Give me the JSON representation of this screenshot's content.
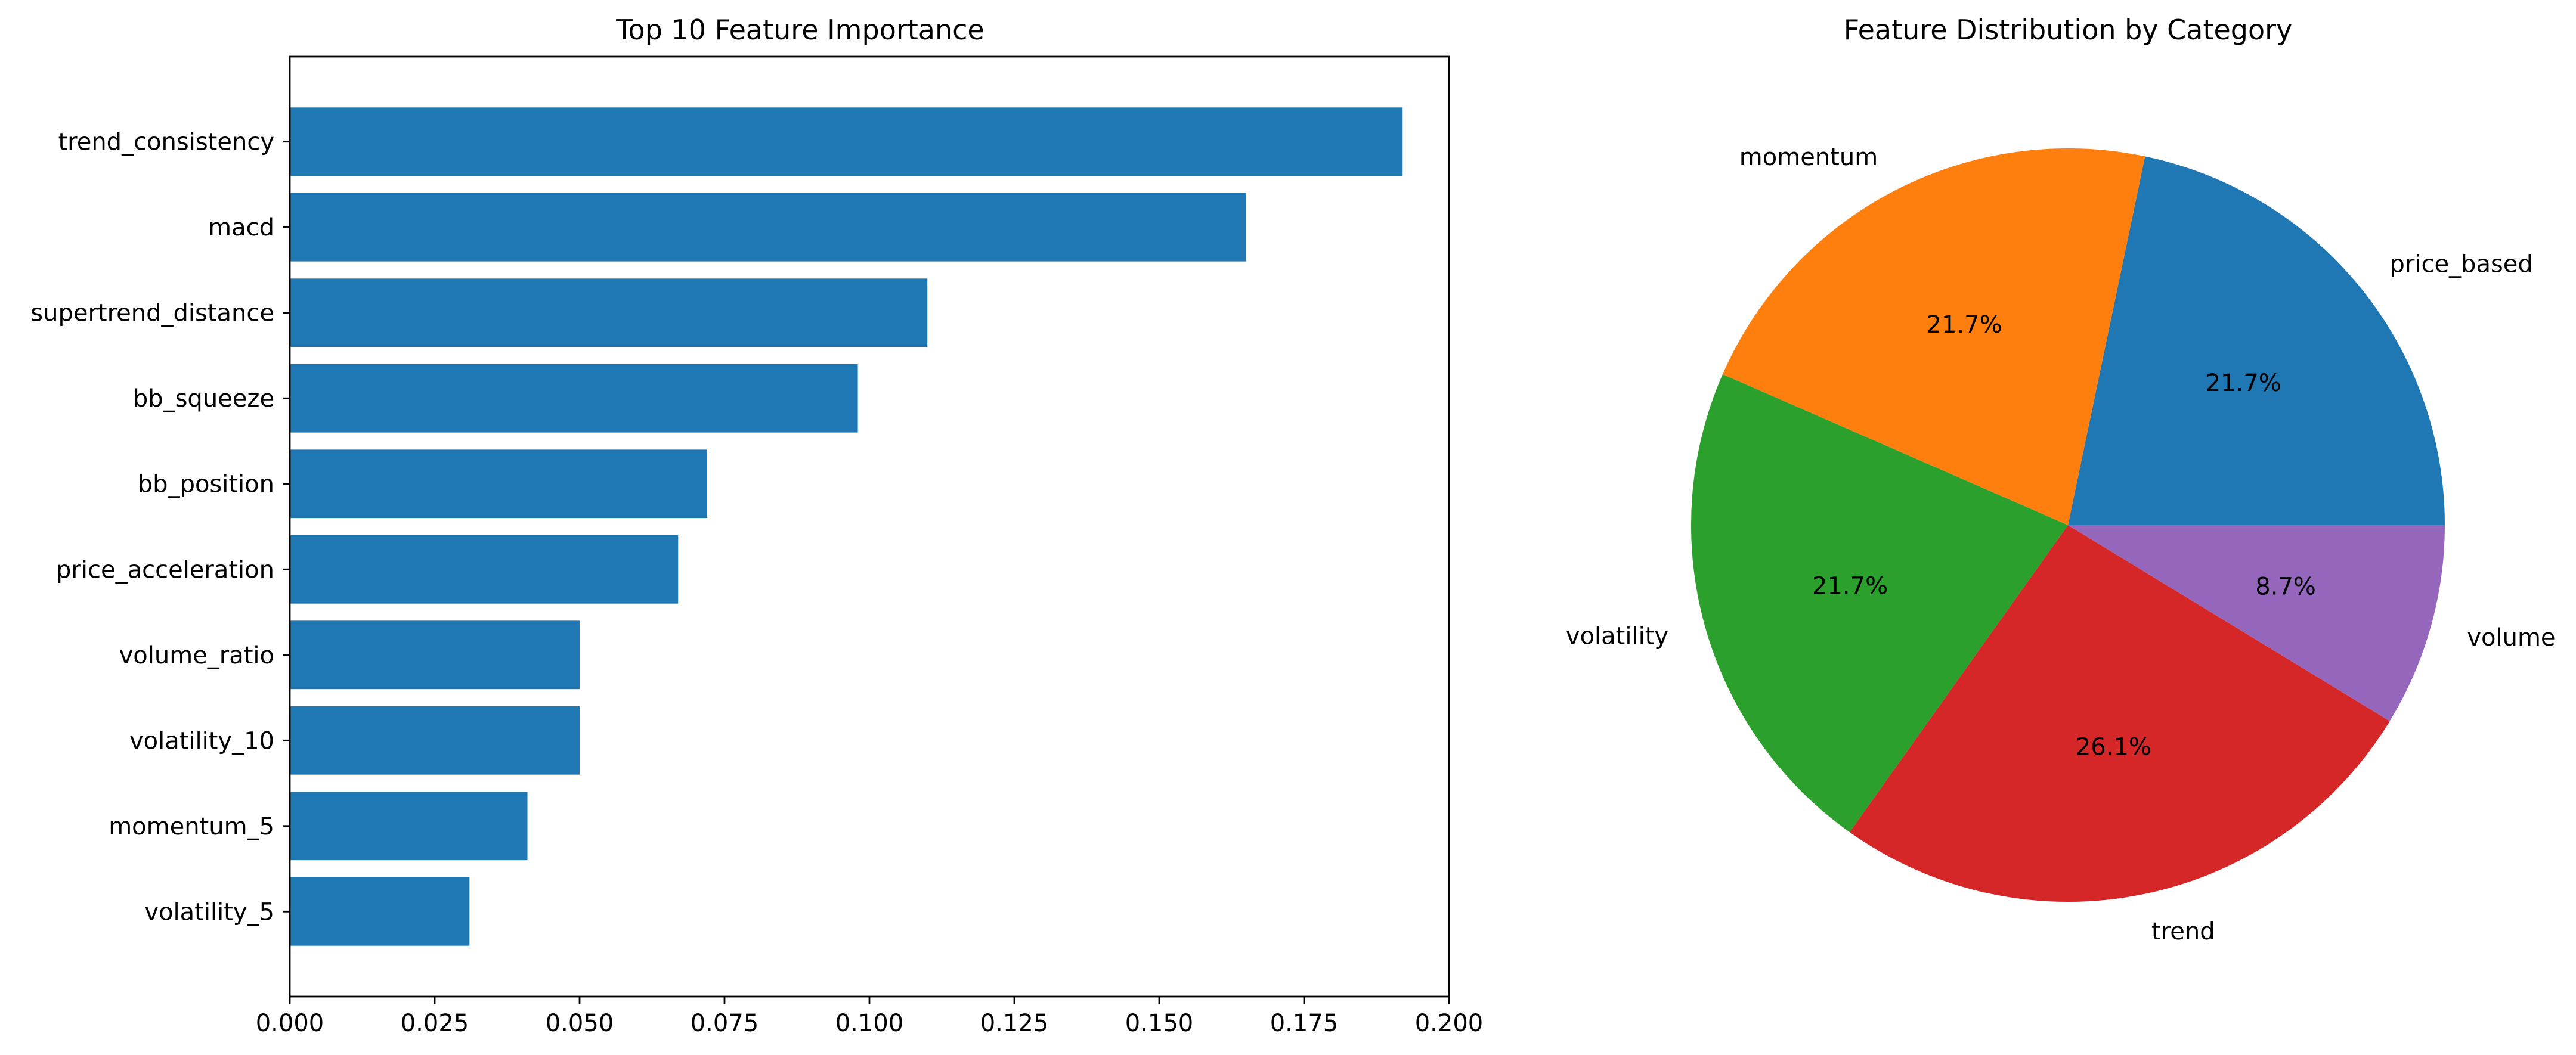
{
  "chart_data": [
    {
      "type": "bar",
      "orientation": "horizontal",
      "title": "Top 10 Feature Importance",
      "xlabel": "",
      "ylabel": "",
      "categories": [
        "trend_consistency",
        "macd",
        "supertrend_distance",
        "bb_squeeze",
        "bb_position",
        "price_acceleration",
        "volume_ratio",
        "volatility_10",
        "momentum_5",
        "volatility_5"
      ],
      "values": [
        0.192,
        0.165,
        0.11,
        0.098,
        0.072,
        0.067,
        0.05,
        0.05,
        0.041,
        0.031
      ],
      "xlim": [
        0,
        0.2
      ],
      "xticks": [
        "0.000",
        "0.025",
        "0.050",
        "0.075",
        "0.100",
        "0.125",
        "0.150",
        "0.175",
        "0.200"
      ],
      "xtick_values": [
        0,
        0.025,
        0.05,
        0.075,
        0.1,
        0.125,
        0.15,
        0.175,
        0.2
      ],
      "bar_color": "#1f77b4",
      "grid": false
    },
    {
      "type": "pie",
      "title": "Feature Distribution by Category",
      "labels": [
        "price_based",
        "momentum",
        "volatility",
        "trend",
        "volume"
      ],
      "percent_labels": [
        "21.7%",
        "21.7%",
        "21.7%",
        "26.1%",
        "8.7%"
      ],
      "values": [
        21.7,
        21.7,
        21.7,
        26.1,
        8.7
      ],
      "colors": [
        "#1f77b4",
        "#ff7f0e",
        "#2ca02c",
        "#d62728",
        "#9467bd"
      ],
      "start_angle_deg": 0,
      "direction": "counterclockwise"
    }
  ]
}
